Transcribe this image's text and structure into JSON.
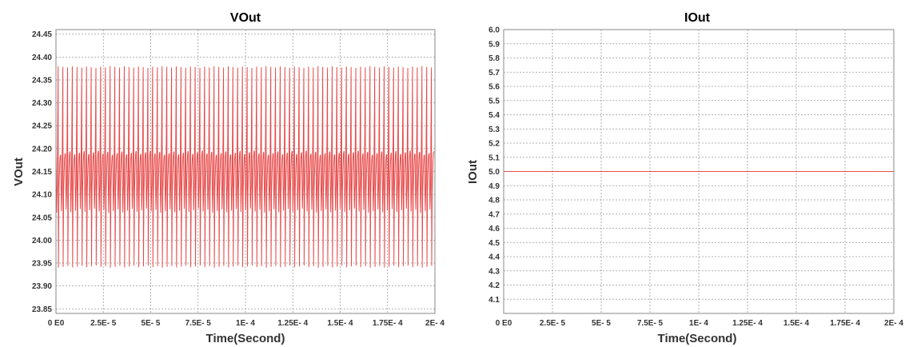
{
  "colors": {
    "series": "#e84a4a",
    "grid": "#9a9a9a",
    "frame": "#888888"
  },
  "chart_data": [
    {
      "type": "line",
      "title": "VOut",
      "xlabel": "Time(Second)",
      "ylabel": "VOut",
      "xlim": [
        0,
        0.0002
      ],
      "ylim": [
        23.84,
        24.46
      ],
      "x_ticks": [
        0,
        2.5e-05,
        5e-05,
        7.5e-05,
        0.0001,
        0.000125,
        0.00015,
        0.000175,
        0.0002
      ],
      "x_tick_labels": [
        "0 E0",
        "2.5E- 5",
        "5E- 5",
        "7.5E- 5",
        "1E- 4",
        "1.25E- 4",
        "1.5E- 4",
        "1.75E- 4",
        "2E- 4"
      ],
      "y_ticks": [
        23.85,
        23.9,
        23.95,
        24.0,
        24.05,
        24.1,
        24.15,
        24.2,
        24.25,
        24.3,
        24.35,
        24.4,
        24.45
      ],
      "y_tick_labels": [
        "23.85",
        "23.90",
        "23.95",
        "24.00",
        "24.05",
        "24.10",
        "24.15",
        "24.20",
        "24.25",
        "24.30",
        "24.35",
        "24.40",
        "24.45"
      ],
      "grid": true,
      "ripple": {
        "cycles": 80,
        "spike_max": 24.38,
        "spike_min": 23.94,
        "ripple_high": 24.19,
        "ripple_low": 24.07,
        "settle": 24.12
      }
    },
    {
      "type": "line",
      "title": "IOut",
      "xlabel": "Time(Second)",
      "ylabel": "IOut",
      "xlim": [
        0,
        0.0002
      ],
      "ylim": [
        4.0,
        6.0
      ],
      "x_ticks": [
        0,
        2.5e-05,
        5e-05,
        7.5e-05,
        0.0001,
        0.000125,
        0.00015,
        0.000175,
        0.0002
      ],
      "x_tick_labels": [
        "0 E0",
        "2.5E- 5",
        "5E- 5",
        "7.5E- 5",
        "1E- 4",
        "1.25E- 4",
        "1.5E- 4",
        "1.75E- 4",
        "2E- 4"
      ],
      "y_ticks": [
        4.1,
        4.2,
        4.3,
        4.4,
        4.5,
        4.6,
        4.7,
        4.8,
        4.9,
        5.0,
        5.1,
        5.2,
        5.3,
        5.4,
        5.5,
        5.6,
        5.7,
        5.8,
        5.9,
        6.0
      ],
      "y_tick_labels": [
        "4.1",
        "4.2",
        "4.3",
        "4.4",
        "4.5",
        "4.6",
        "4.7",
        "4.8",
        "4.9",
        "5.0",
        "5.1",
        "5.2",
        "5.3",
        "5.4",
        "5.5",
        "5.6",
        "5.7",
        "5.8",
        "5.9",
        "6.0"
      ],
      "grid": true,
      "series": [
        {
          "x": [
            0,
            0.0002
          ],
          "y": [
            5.0,
            5.0
          ]
        }
      ]
    }
  ]
}
